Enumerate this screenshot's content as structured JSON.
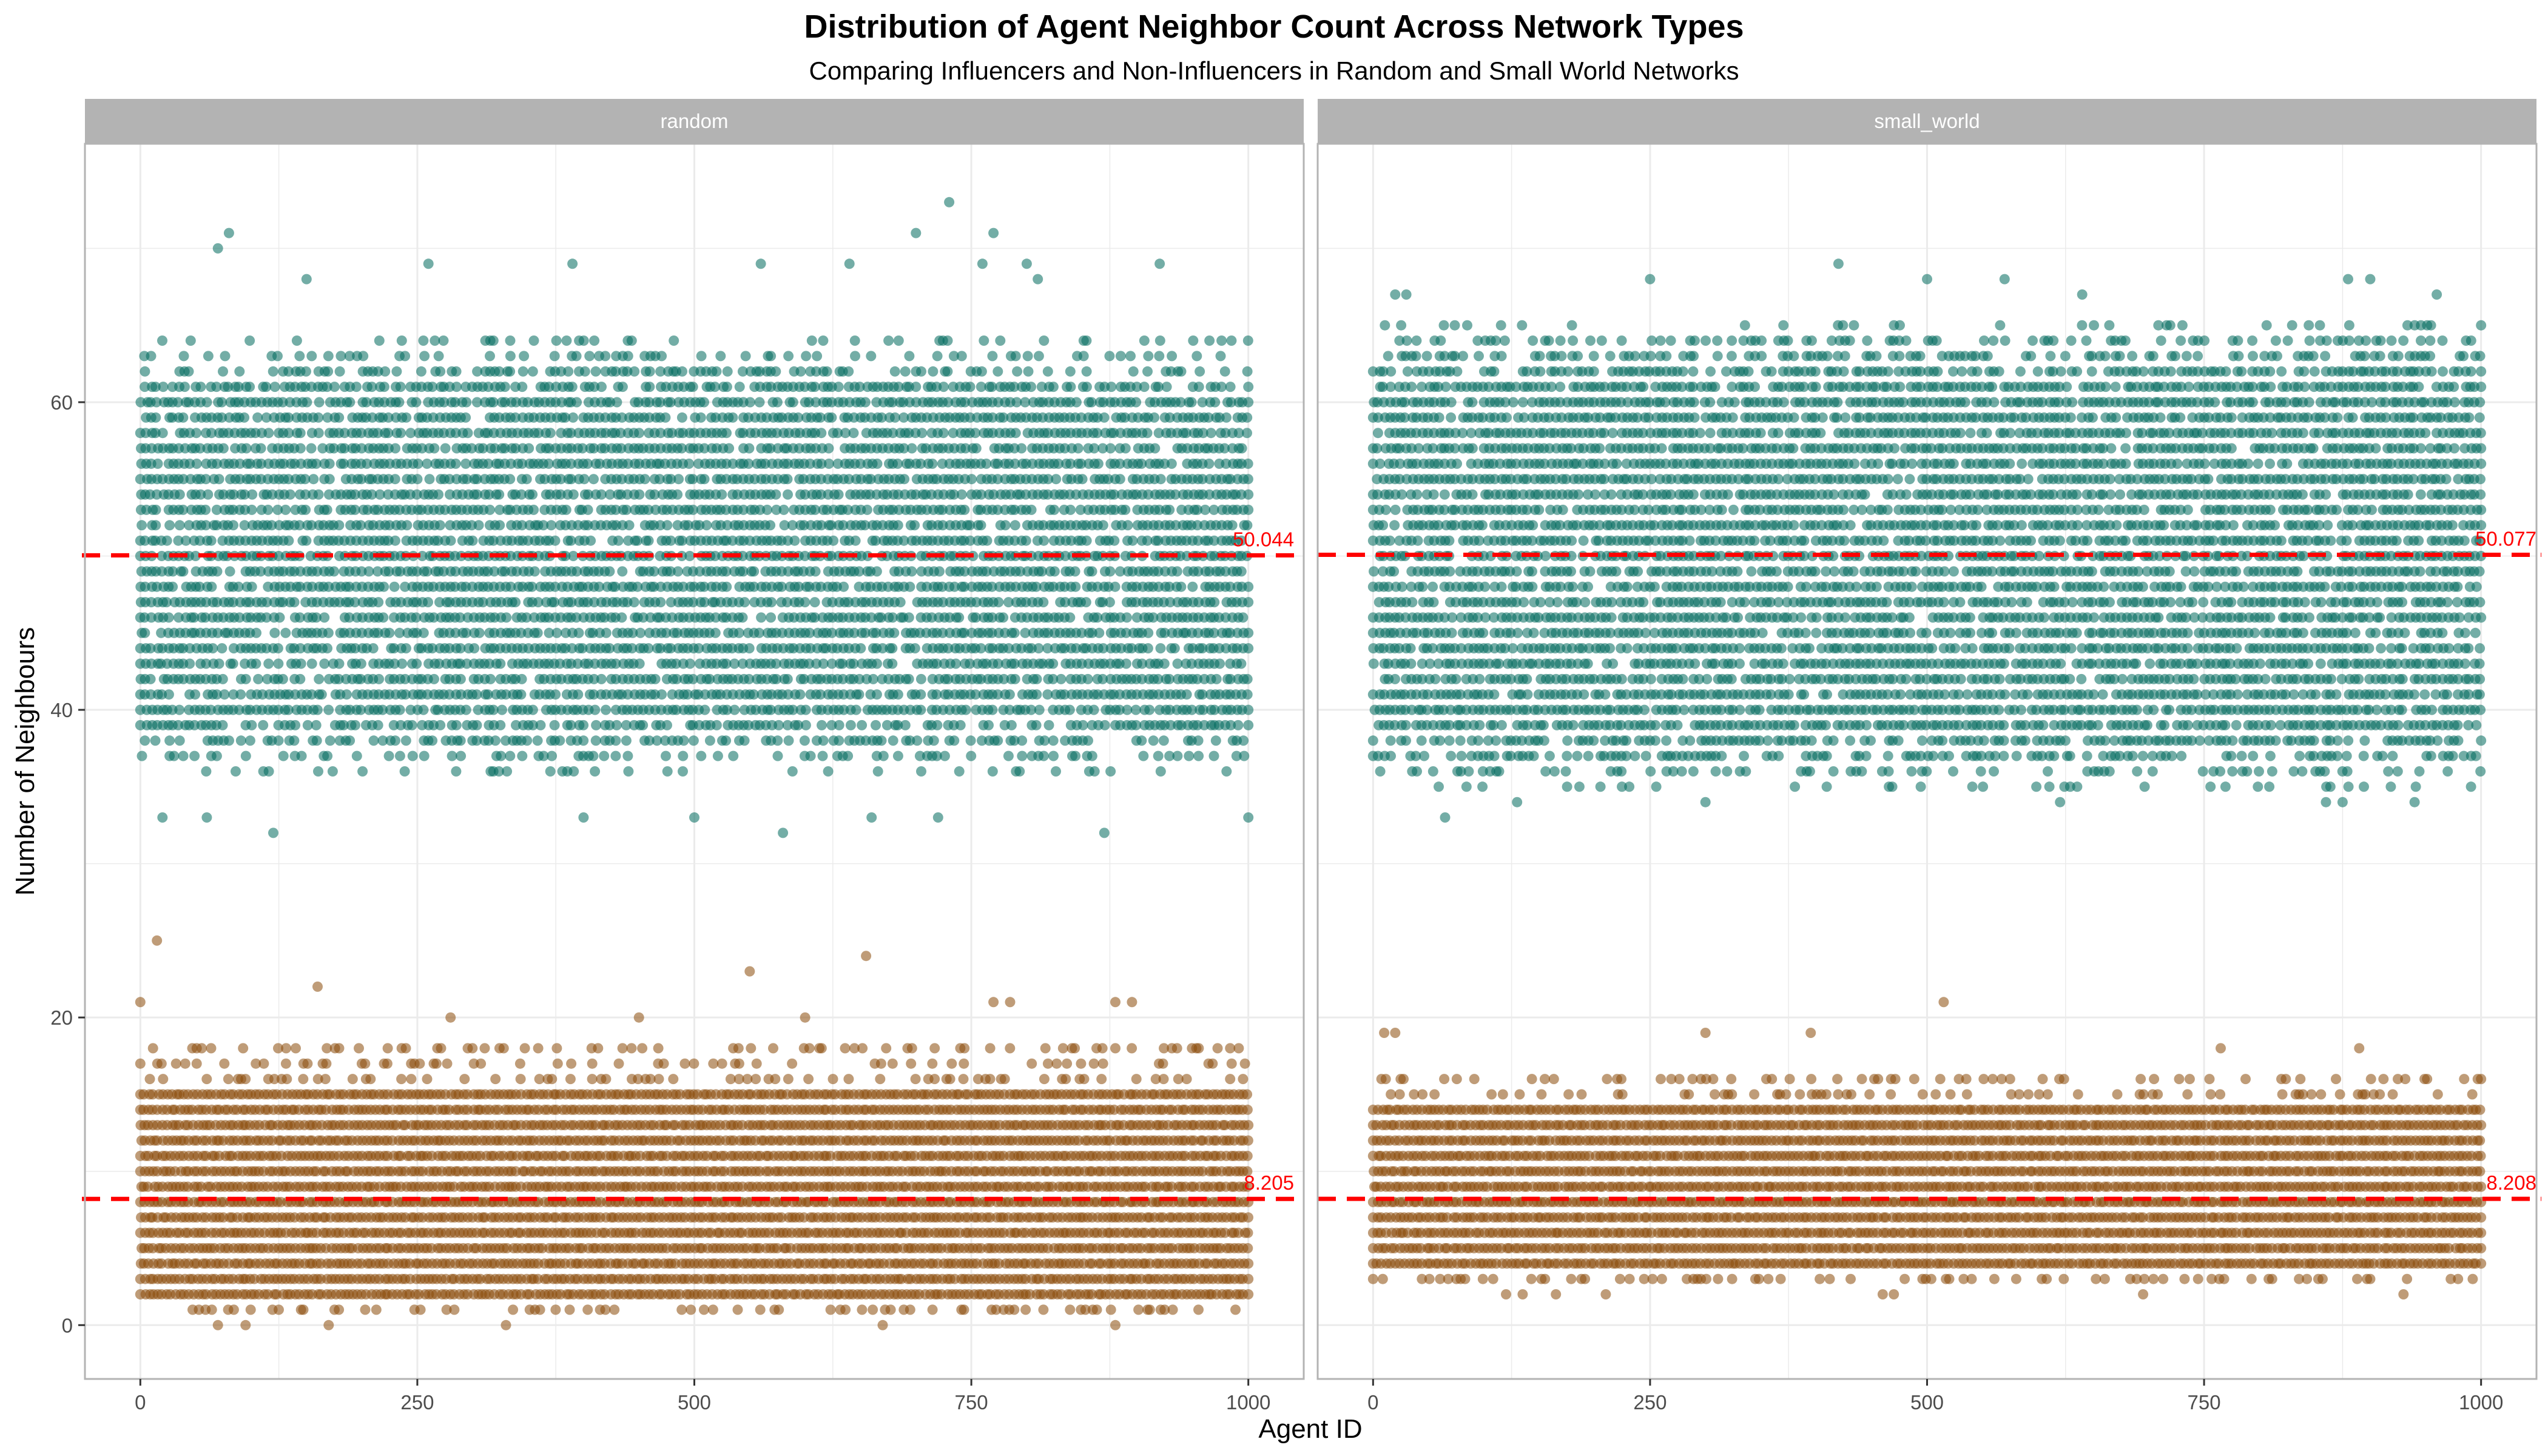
{
  "chart_data": {
    "type": "scatter",
    "title": "Distribution of Agent Neighbor Count Across Network Types",
    "subtitle": "Comparing Influencers and Non-Influencers in Random and Small World Networks",
    "xlabel": "Agent ID",
    "ylabel": "Number of Neighbours",
    "xlim": [
      -50,
      1050
    ],
    "ylim": [
      -3.5,
      76.8
    ],
    "x_ticks": [
      "0",
      "250",
      "500",
      "750",
      "1000"
    ],
    "y_ticks": [
      "0",
      "20",
      "40",
      "60"
    ],
    "x_tick_values": [
      0,
      250,
      500,
      750,
      1000
    ],
    "y_tick_values": [
      0,
      20,
      40,
      60
    ],
    "grid": true,
    "legend": "none",
    "colors": {
      "influencer": "#00695C",
      "non_influencer": "#8B4A0A",
      "mean_line": "#FF0000",
      "strip_bg": "#B3B3B3",
      "grid": "#EBEBEB",
      "panel_border": "#B3B3B3"
    },
    "facets": [
      {
        "name": "random",
        "groups": [
          {
            "role": "influencer",
            "mean": 50.044,
            "mean_label": "50.044",
            "dense_range": [
              36,
              64
            ],
            "extremes": [
              32,
              73
            ],
            "outliers": [
              [
                70,
                70
              ],
              [
                80,
                71
              ],
              [
                730,
                73
              ],
              [
                770,
                71
              ],
              [
                150,
                68
              ],
              [
                260,
                69
              ],
              [
                390,
                69
              ],
              [
                560,
                69
              ],
              [
                640,
                69
              ],
              [
                700,
                71
              ],
              [
                760,
                69
              ],
              [
                800,
                69
              ],
              [
                810,
                68
              ],
              [
                920,
                69
              ],
              [
                120,
                32
              ],
              [
                870,
                32
              ],
              [
                580,
                32
              ],
              [
                720,
                33
              ],
              [
                1000,
                33
              ],
              [
                20,
                33
              ],
              [
                60,
                33
              ],
              [
                400,
                33
              ],
              [
                500,
                33
              ],
              [
                660,
                33
              ]
            ]
          },
          {
            "role": "non_influencer",
            "mean": 8.205,
            "mean_label": "8.205",
            "dense_range": [
              1,
              18
            ],
            "extremes": [
              0,
              25
            ],
            "outliers": [
              [
                0,
                21
              ],
              [
                15,
                25
              ],
              [
                160,
                22
              ],
              [
                550,
                23
              ],
              [
                655,
                24
              ],
              [
                770,
                21
              ],
              [
                785,
                21
              ],
              [
                880,
                21
              ],
              [
                895,
                21
              ],
              [
                280,
                20
              ],
              [
                450,
                20
              ],
              [
                600,
                20
              ],
              [
                70,
                0
              ],
              [
                95,
                0
              ],
              [
                170,
                0
              ],
              [
                330,
                0
              ],
              [
                670,
                0
              ],
              [
                880,
                0
              ]
            ]
          }
        ]
      },
      {
        "name": "small_world",
        "groups": [
          {
            "role": "influencer",
            "mean": 50.077,
            "mean_label": "50.077",
            "dense_range": [
              35,
              65
            ],
            "extremes": [
              33,
              69
            ],
            "outliers": [
              [
                420,
                69
              ],
              [
                500,
                68
              ],
              [
                570,
                68
              ],
              [
                640,
                67
              ],
              [
                880,
                68
              ],
              [
                900,
                68
              ],
              [
                250,
                68
              ],
              [
                20,
                67
              ],
              [
                30,
                67
              ],
              [
                960,
                67
              ],
              [
                65,
                33
              ],
              [
                130,
                34
              ],
              [
                300,
                34
              ],
              [
                620,
                34
              ],
              [
                860,
                34
              ],
              [
                875,
                34
              ],
              [
                940,
                34
              ]
            ]
          },
          {
            "role": "non_influencer",
            "mean": 8.208,
            "mean_label": "8.208",
            "dense_range": [
              3,
              16
            ],
            "extremes": [
              2,
              21
            ],
            "outliers": [
              [
                515,
                21
              ],
              [
                10,
                19
              ],
              [
                20,
                19
              ],
              [
                300,
                19
              ],
              [
                395,
                19
              ],
              [
                765,
                18
              ],
              [
                890,
                18
              ],
              [
                120,
                2
              ],
              [
                135,
                2
              ],
              [
                165,
                2
              ],
              [
                210,
                2
              ],
              [
                460,
                2
              ],
              [
                470,
                2
              ],
              [
                695,
                2
              ],
              [
                930,
                2
              ]
            ]
          }
        ]
      }
    ]
  }
}
